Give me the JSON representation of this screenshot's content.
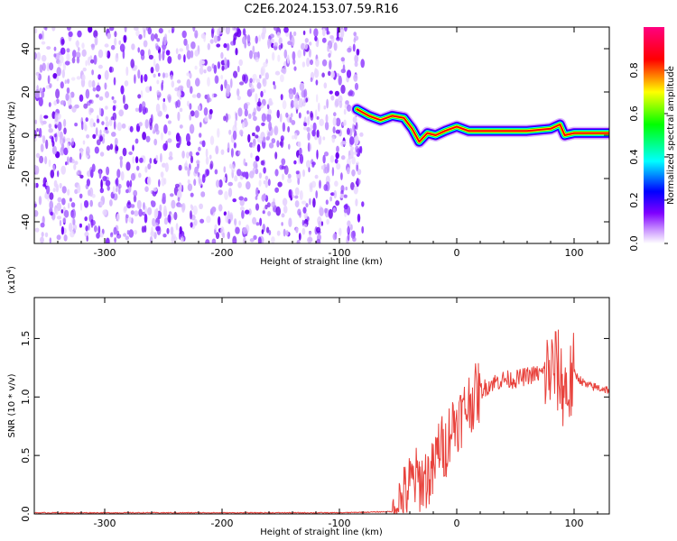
{
  "figure": {
    "title": "C2E6.2024.153.07.59.R16"
  },
  "chart_data": [
    {
      "type": "heatmap",
      "panel": "spectrogram",
      "xlabel": "Height of straight line (km)",
      "ylabel": "Frequency (Hz)",
      "xlim": [
        -360,
        130
      ],
      "ylim": [
        -50,
        50
      ],
      "x_ticks": [
        -300,
        -200,
        -100,
        0,
        100
      ],
      "y_ticks": [
        -40,
        -20,
        0,
        20,
        40
      ],
      "noise_region": {
        "x_from": -360,
        "x_to": -80,
        "freq_from": -50,
        "freq_to": 50,
        "level": "low (0.0-0.2)"
      },
      "signal_track": [
        {
          "x": -85,
          "freq": 12
        },
        {
          "x": -75,
          "freq": 9
        },
        {
          "x": -65,
          "freq": 7
        },
        {
          "x": -55,
          "freq": 9
        },
        {
          "x": -45,
          "freq": 8
        },
        {
          "x": -38,
          "freq": 3
        },
        {
          "x": -32,
          "freq": -3
        },
        {
          "x": -25,
          "freq": 1
        },
        {
          "x": -18,
          "freq": 0
        },
        {
          "x": -10,
          "freq": 2
        },
        {
          "x": 0,
          "freq": 4
        },
        {
          "x": 10,
          "freq": 2
        },
        {
          "x": 30,
          "freq": 2
        },
        {
          "x": 60,
          "freq": 2
        },
        {
          "x": 80,
          "freq": 3
        },
        {
          "x": 88,
          "freq": 5
        },
        {
          "x": 92,
          "freq": 0
        },
        {
          "x": 100,
          "freq": 1
        },
        {
          "x": 130,
          "freq": 1
        }
      ],
      "colorbar": {
        "label": "Normalized spectral amplitude",
        "ticks": [
          "0.0",
          "0.2",
          "0.4",
          "0.6",
          "0.8"
        ],
        "range": [
          0,
          1
        ],
        "colors": [
          "#ffffff",
          "#cc99ff",
          "#7f00ff",
          "#0000ff",
          "#00ffff",
          "#00ff00",
          "#ffff00",
          "#ff0000",
          "#ff0080"
        ]
      }
    },
    {
      "type": "line",
      "panel": "snr",
      "xlabel": "Height of straight line (km)",
      "ylabel": "SNR (10 * v/v)",
      "y_multiplier": "(x10",
      "y_multiplier_exp": "4",
      "y_multiplier_close": ")",
      "xlim": [
        -360,
        130
      ],
      "ylim": [
        0,
        1.85
      ],
      "x_ticks": [
        -300,
        -200,
        -100,
        0,
        100
      ],
      "y_ticks": [
        "0.0",
        "0.5",
        "1.0",
        "1.5"
      ],
      "line_color": "#e8423c",
      "series": [
        {
          "x": [
            -360,
            -100,
            -55,
            -45,
            -40,
            -35,
            -30,
            -25,
            -20,
            -15,
            -10,
            -5,
            0,
            5,
            10,
            20,
            30,
            40,
            50,
            60,
            70,
            80,
            85,
            90,
            95,
            100,
            110,
            120,
            130
          ],
          "values": [
            0.01,
            0.01,
            0.02,
            0.15,
            0.25,
            0.3,
            0.28,
            0.32,
            0.35,
            0.6,
            0.55,
            0.75,
            0.8,
            0.85,
            0.95,
            1.05,
            1.12,
            1.15,
            1.15,
            1.18,
            1.2,
            1.22,
            1.25,
            1.1,
            1.05,
            1.2,
            1.1,
            1.08,
            1.06
          ]
        }
      ]
    }
  ]
}
